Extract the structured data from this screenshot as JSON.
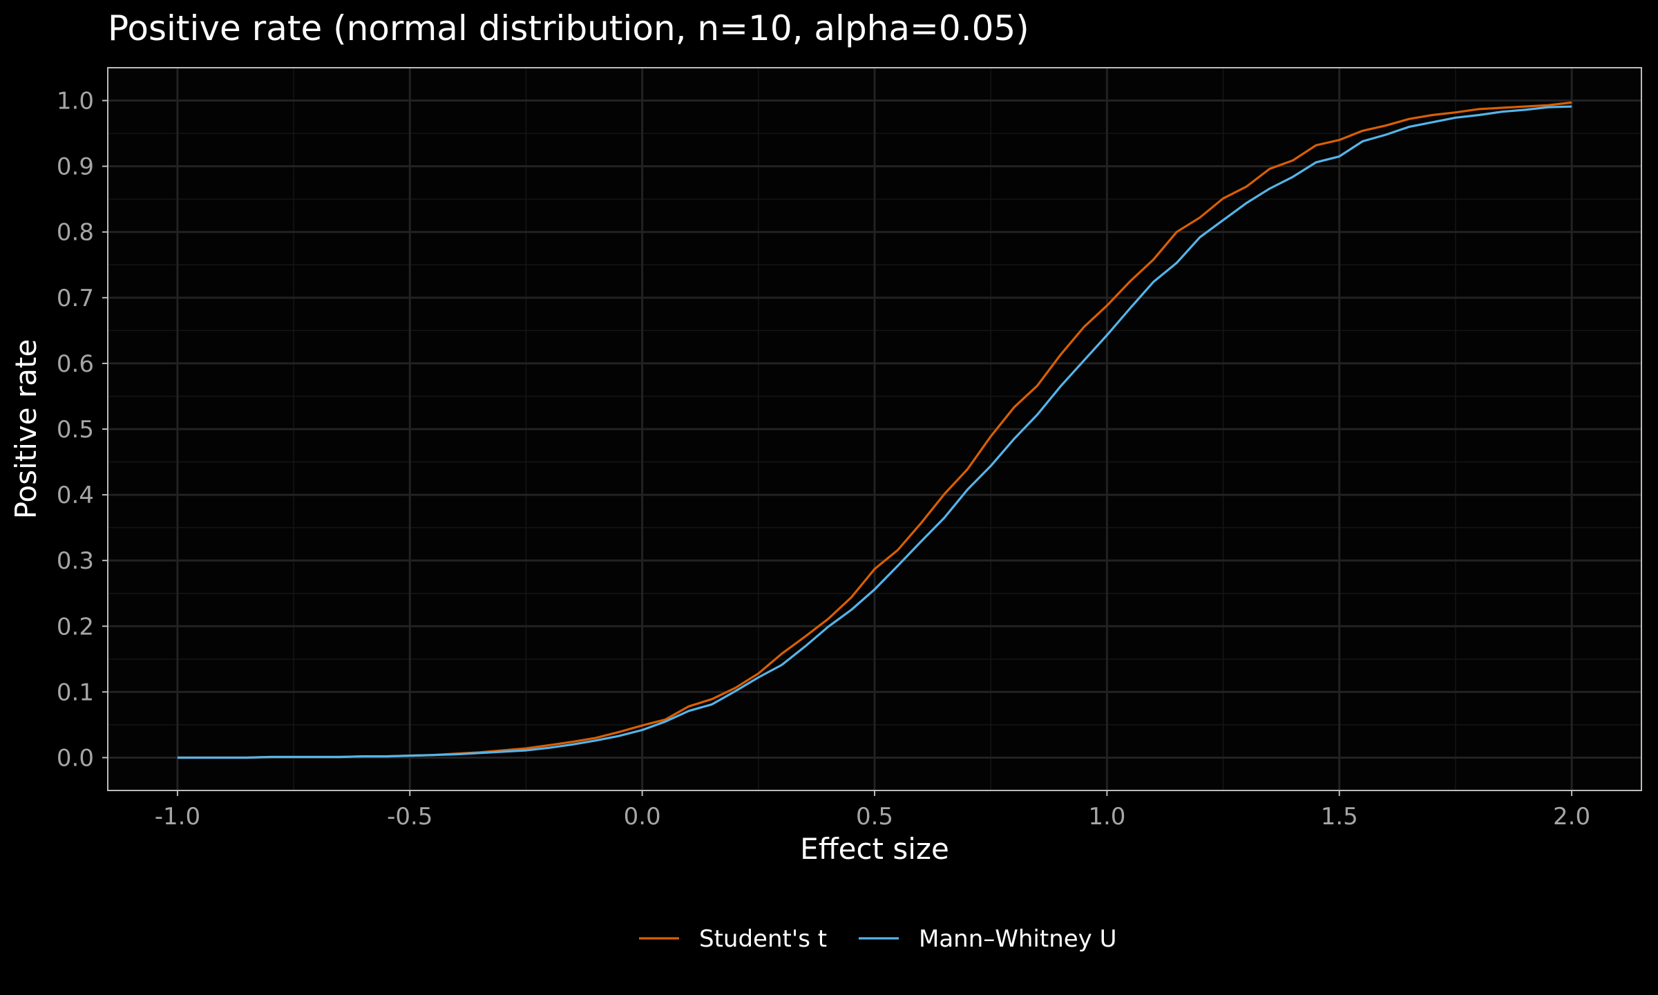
{
  "chart_data": {
    "type": "line",
    "title": "Positive rate (normal distribution, n=10, alpha=0.05)",
    "xlabel": "Effect size",
    "ylabel": "Positive rate",
    "xlim": [
      -1.15,
      2.15
    ],
    "ylim": [
      -0.05,
      1.05
    ],
    "x_ticks": [
      -1.0,
      -0.5,
      0.0,
      0.5,
      1.0,
      1.5,
      2.0
    ],
    "x_tick_labels": [
      "-1.0",
      "-0.5",
      "0.0",
      "0.5",
      "1.0",
      "1.5",
      "2.0"
    ],
    "y_ticks": [
      0.0,
      0.1,
      0.2,
      0.3,
      0.4,
      0.5,
      0.6,
      0.7,
      0.8,
      0.9,
      1.0
    ],
    "y_tick_labels": [
      "0.0",
      "0.1",
      "0.2",
      "0.3",
      "0.4",
      "0.5",
      "0.6",
      "0.7",
      "0.8",
      "0.9",
      "1.0"
    ],
    "grid": true,
    "legend_position": "bottom",
    "x": [
      -1.0,
      -0.95,
      -0.9,
      -0.85,
      -0.8,
      -0.75,
      -0.7,
      -0.65,
      -0.6,
      -0.55,
      -0.5,
      -0.45,
      -0.4,
      -0.35,
      -0.3,
      -0.25,
      -0.2,
      -0.15,
      -0.1,
      -0.05,
      0.0,
      0.05,
      0.1,
      0.15,
      0.2,
      0.25,
      0.3,
      0.35,
      0.4,
      0.45,
      0.5,
      0.55,
      0.6,
      0.65,
      0.7,
      0.75,
      0.8,
      0.85,
      0.9,
      0.95,
      1.0,
      1.05,
      1.1,
      1.15,
      1.2,
      1.25,
      1.3,
      1.35,
      1.4,
      1.45,
      1.5,
      1.55,
      1.6,
      1.65,
      1.7,
      1.75,
      1.8,
      1.85,
      1.9,
      1.95,
      2.0
    ],
    "series": [
      {
        "name": "Student's t",
        "color": "#d95f02",
        "values": [
          0.0,
          0.0,
          0.0,
          0.0,
          0.001,
          0.001,
          0.001,
          0.001,
          0.002,
          0.002,
          0.003,
          0.004,
          0.006,
          0.008,
          0.011,
          0.014,
          0.019,
          0.024,
          0.03,
          0.039,
          0.049,
          0.058,
          0.078,
          0.089,
          0.106,
          0.128,
          0.158,
          0.184,
          0.211,
          0.244,
          0.287,
          0.316,
          0.357,
          0.401,
          0.439,
          0.489,
          0.533,
          0.566,
          0.613,
          0.655,
          0.688,
          0.725,
          0.758,
          0.8,
          0.822,
          0.851,
          0.869,
          0.896,
          0.909,
          0.932,
          0.94,
          0.954,
          0.962,
          0.972,
          0.978,
          0.982,
          0.987,
          0.989,
          0.991,
          0.993,
          0.997
        ]
      },
      {
        "name": "Mann–Whitney U",
        "color": "#56b4e9",
        "values": [
          0.0,
          0.0,
          0.0,
          0.0,
          0.001,
          0.001,
          0.001,
          0.001,
          0.002,
          0.002,
          0.003,
          0.004,
          0.005,
          0.007,
          0.009,
          0.011,
          0.015,
          0.02,
          0.026,
          0.033,
          0.042,
          0.055,
          0.071,
          0.081,
          0.101,
          0.122,
          0.141,
          0.169,
          0.199,
          0.225,
          0.256,
          0.292,
          0.329,
          0.365,
          0.408,
          0.444,
          0.485,
          0.522,
          0.565,
          0.604,
          0.643,
          0.684,
          0.724,
          0.753,
          0.792,
          0.818,
          0.844,
          0.866,
          0.884,
          0.906,
          0.915,
          0.938,
          0.948,
          0.96,
          0.967,
          0.974,
          0.978,
          0.983,
          0.986,
          0.99,
          0.991
        ]
      }
    ]
  }
}
